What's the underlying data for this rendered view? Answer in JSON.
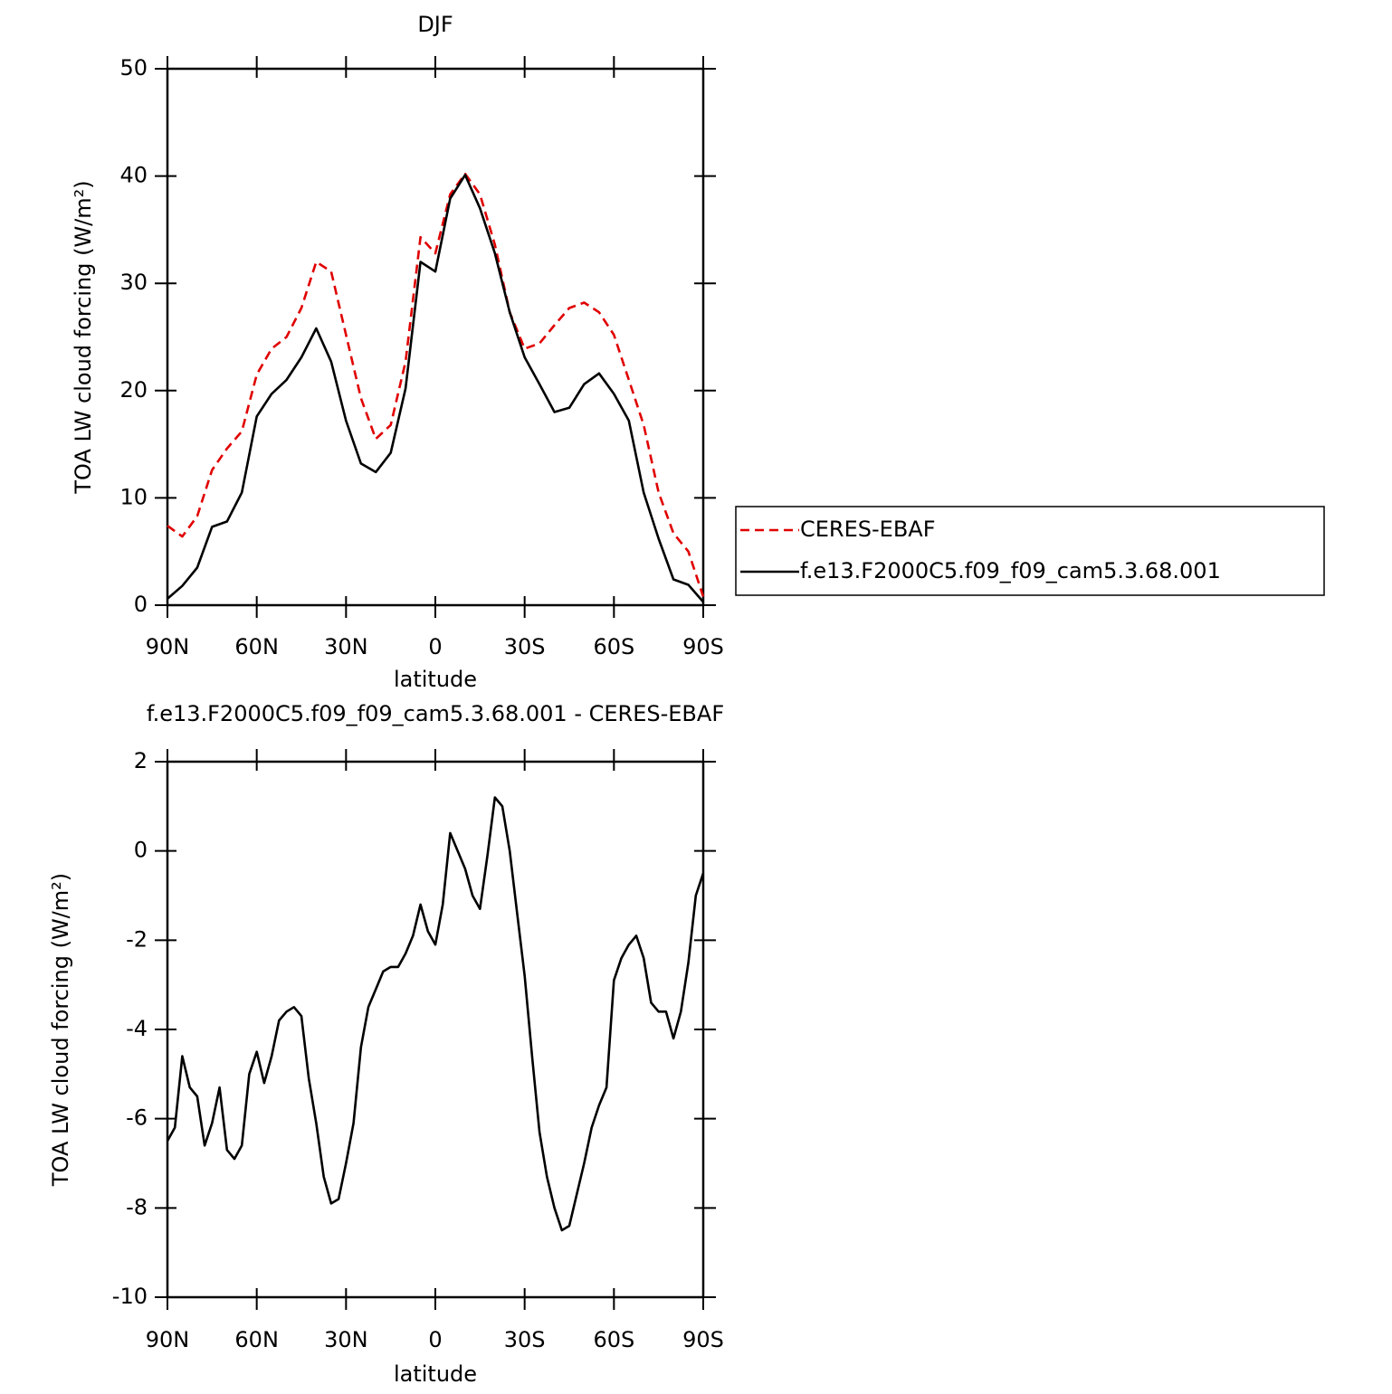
{
  "chart_data": [
    {
      "type": "line",
      "title": "DJF",
      "x_label": "latitude",
      "y_label": "TOA LW cloud forcing (W/m²)",
      "x": [
        90,
        85,
        80,
        75,
        70,
        65,
        60,
        55,
        50,
        45,
        40,
        35,
        30,
        25,
        20,
        15,
        10,
        5,
        0,
        -5,
        -10,
        -15,
        -20,
        -25,
        -30,
        -35,
        -40,
        -45,
        -50,
        -55,
        -60,
        -65,
        -70,
        -75,
        -80,
        -85,
        -90
      ],
      "series": [
        {
          "name": "CERES-EBAF",
          "color": "#e00000",
          "linestyle": "dashed",
          "values": [
            7.4,
            6.4,
            8.3,
            12.6,
            14.6,
            16.2,
            21.5,
            23.9,
            25.0,
            27.7,
            32.0,
            31.1,
            25.2,
            19.3,
            15.5,
            16.8,
            22.7,
            34.3,
            32.8,
            38.3,
            40.2,
            38.3,
            33.6,
            27.3,
            23.9,
            24.4,
            26.1,
            27.7,
            28.2,
            27.3,
            25.2,
            21.0,
            16.8,
            10.5,
            6.7,
            5.0,
            0.8
          ]
        },
        {
          "name": "f.e13.F2000C5.f09_f09_cam5.3.68.001",
          "color": "#000000",
          "linestyle": "solid",
          "values": [
            0.6,
            1.8,
            3.5,
            7.3,
            7.8,
            10.5,
            17.6,
            19.7,
            21.0,
            23.1,
            25.8,
            22.7,
            17.2,
            13.2,
            12.4,
            14.2,
            20.2,
            32.0,
            31.1,
            37.9,
            40.1,
            37.0,
            32.8,
            27.3,
            23.1,
            20.6,
            18.0,
            18.4,
            20.6,
            21.6,
            19.7,
            17.2,
            10.5,
            6.2,
            2.4,
            1.9,
            0.3
          ]
        }
      ],
      "xlim": [
        90,
        -90
      ],
      "xticks": [
        {
          "value": 90,
          "label": "90N"
        },
        {
          "value": 60,
          "label": "60N"
        },
        {
          "value": 30,
          "label": "30N"
        },
        0,
        {
          "value": -30,
          "label": "30S"
        },
        {
          "value": -60,
          "label": "60S"
        },
        {
          "value": -90,
          "label": "90S"
        }
      ],
      "ylim": [
        0,
        50
      ],
      "yticks": [
        0,
        10,
        20,
        30,
        40,
        50
      ],
      "legend": "right"
    },
    {
      "type": "line",
      "title": "f.e13.F2000C5.f09_f09_cam5.3.68.001 - CERES-EBAF",
      "x_label": "latitude",
      "y_label": "TOA LW cloud forcing (W/m²)",
      "x": [
        90,
        87.5,
        85,
        82.5,
        80,
        77.5,
        75,
        72.5,
        70,
        67.5,
        65,
        62.5,
        60,
        57.5,
        55,
        52.5,
        50,
        47.5,
        45,
        42.5,
        40,
        37.5,
        35,
        32.5,
        30,
        27.5,
        25,
        22.5,
        20,
        17.5,
        15,
        12.5,
        10,
        7.5,
        5,
        2.5,
        0,
        -2.5,
        -5,
        -7.5,
        -10,
        -12.5,
        -15,
        -17.5,
        -20,
        -22.5,
        -25,
        -27.5,
        -30,
        -32.5,
        -35,
        -37.5,
        -40,
        -42.5,
        -45,
        -47.5,
        -50,
        -52.5,
        -55,
        -57.5,
        -60,
        -62.5,
        -65,
        -67.5,
        -70,
        -72.5,
        -75,
        -77.5,
        -80,
        -82.5,
        -85,
        -87.5,
        -90
      ],
      "color": "#000000",
      "values": [
        -6.5,
        -6.2,
        -4.6,
        -5.3,
        -5.5,
        -6.6,
        -6.1,
        -5.3,
        -6.7,
        -6.9,
        -6.6,
        -5.0,
        -4.5,
        -5.2,
        -4.6,
        -3.8,
        -3.6,
        -3.5,
        -3.7,
        -5.1,
        -6.1,
        -7.3,
        -7.9,
        -7.8,
        -7.0,
        -6.1,
        -4.4,
        -3.5,
        -3.1,
        -2.7,
        -2.6,
        -2.6,
        -2.3,
        -1.9,
        -1.2,
        -1.8,
        -2.1,
        -1.2,
        0.4,
        0.0,
        -0.4,
        -1.0,
        -1.3,
        -0.1,
        1.2,
        1.0,
        0.0,
        -1.4,
        -2.8,
        -4.6,
        -6.3,
        -7.3,
        -8.0,
        -8.5,
        -8.4,
        -7.7,
        -7.0,
        -6.2,
        -5.7,
        -5.3,
        -2.9,
        -2.4,
        -2.1,
        -1.9,
        -2.4,
        -3.4,
        -3.6,
        -3.6,
        -4.2,
        -3.6,
        -2.5,
        -1.0,
        -0.5
      ],
      "xlim": [
        90,
        -90
      ],
      "xticks": [
        {
          "value": 90,
          "label": "90N"
        },
        {
          "value": 60,
          "label": "60N"
        },
        {
          "value": 30,
          "label": "30N"
        },
        0,
        {
          "value": -30,
          "label": "30S"
        },
        {
          "value": -60,
          "label": "60S"
        },
        {
          "value": -90,
          "label": "90S"
        }
      ],
      "ylim": [
        -10,
        2
      ],
      "yticks": [
        -10,
        -8,
        -6,
        -4,
        -2,
        0,
        2
      ]
    }
  ]
}
